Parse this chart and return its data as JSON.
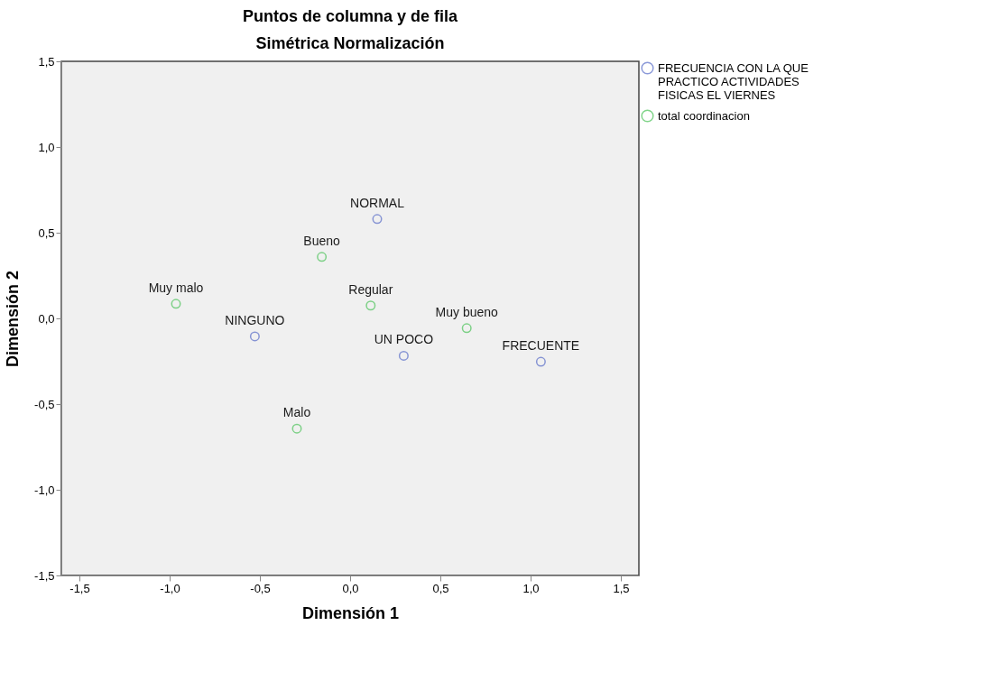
{
  "chart_data": {
    "type": "scatter",
    "title": "Puntos de columna y de fila",
    "subtitle": "Simétrica Normalización",
    "xlabel": "Dimensión 1",
    "ylabel": "Dimensión 2",
    "series": [
      {
        "name": "FRECUENCIA CON LA QUE PRACTICO ACTIVIDADES FISICAS  EL VIERNES",
        "color": "#5a6ec8",
        "x": [
          0.15,
          -0.528,
          0.297,
          1.057
        ],
        "values": [
          0.58,
          -0.105,
          -0.218,
          -0.253
        ]
      },
      {
        "name": "total coordinacion",
        "color": "#4cc35a",
        "x": [
          -0.157,
          -0.965,
          0.114,
          0.646,
          -0.295
        ],
        "values": [
          0.359,
          0.085,
          0.075,
          -0.057,
          -0.643
        ]
      }
    ],
    "annotations": [
      {
        "text": "NORMAL",
        "x": 0.15,
        "y": 0.58
      },
      {
        "text": "NINGUNO",
        "x": -0.528,
        "y": -0.105
      },
      {
        "text": "UN POCO",
        "x": 0.297,
        "y": -0.218
      },
      {
        "text": "FRECUENTE",
        "x": 1.057,
        "y": -0.253
      },
      {
        "text": "Bueno",
        "x": -0.157,
        "y": 0.359
      },
      {
        "text": "Muy malo",
        "x": -0.965,
        "y": 0.085
      },
      {
        "text": "Regular",
        "x": 0.114,
        "y": 0.075
      },
      {
        "text": "Muy bueno",
        "x": 0.646,
        "y": -0.057
      },
      {
        "text": "Malo",
        "x": -0.295,
        "y": -0.643
      }
    ],
    "xlim": [
      -1.6,
      1.6
    ],
    "xticks": [
      {
        "value": -1.5,
        "label": "-1,5"
      },
      {
        "value": -1.0,
        "label": "-1,0"
      },
      {
        "value": -0.5,
        "label": "-0,5"
      },
      {
        "value": 0.0,
        "label": "0,0"
      },
      {
        "value": 0.5,
        "label": "0,5"
      },
      {
        "value": 1.0,
        "label": "1,0"
      },
      {
        "value": 1.5,
        "label": "1,5"
      }
    ],
    "ylim": [
      -1.5,
      1.5
    ],
    "yticks": [
      {
        "value": -1.5,
        "label": "-1,5"
      },
      {
        "value": -1.0,
        "label": "-1,0"
      },
      {
        "value": -0.5,
        "label": "-0,5"
      },
      {
        "value": 0.0,
        "label": "0,0"
      },
      {
        "value": 0.5,
        "label": "0,5"
      },
      {
        "value": 1.0,
        "label": "1,0"
      },
      {
        "value": 1.5,
        "label": "1,5"
      }
    ],
    "grid": false,
    "legend": "top right",
    "marker": "circle"
  }
}
